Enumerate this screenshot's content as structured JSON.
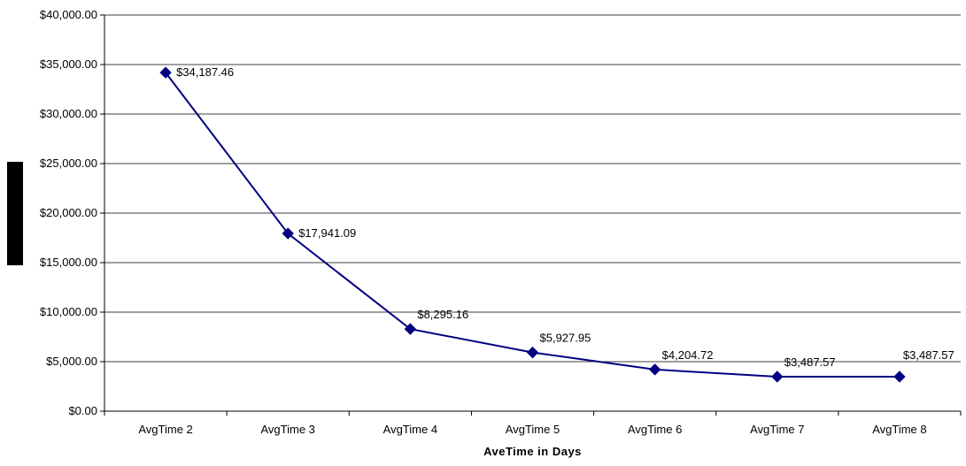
{
  "chart_data": {
    "type": "line",
    "title": "",
    "xlabel": "AveTime in Days",
    "ylabel": "",
    "categories": [
      "AvgTime 2",
      "AvgTime 3",
      "AvgTime 4",
      "AvgTime 5",
      "AvgTime 6",
      "AvgTime 7",
      "AvgTime 8"
    ],
    "series": [
      {
        "values": [
          34187.46,
          17941.09,
          8295.16,
          5927.95,
          4204.72,
          3487.57,
          3487.57
        ],
        "data_labels": [
          "$34,187.46",
          "$17,941.09",
          "$8,295.16",
          "$5,927.95",
          "$4,204.72",
          "$3,487.57",
          "$3,487.57"
        ],
        "color": "#000080",
        "marker": "diamond"
      }
    ],
    "ylim": [
      0,
      40000
    ],
    "y_ticks": [
      0,
      5000,
      10000,
      15000,
      20000,
      25000,
      30000,
      35000,
      40000
    ],
    "y_tick_labels": [
      "$0.00",
      "$5,000.00",
      "$10,000.00",
      "$15,000.00",
      "$20,000.00",
      "$25,000.00",
      "$30,000.00",
      "$35,000.00",
      "$40,000.00"
    ],
    "grid": true,
    "legend": "none"
  }
}
